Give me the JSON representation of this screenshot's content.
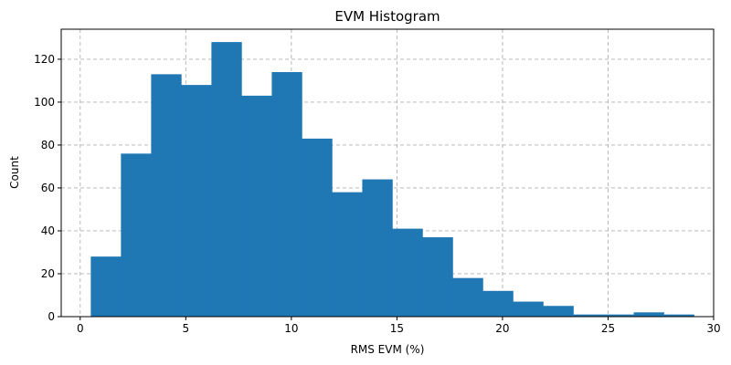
{
  "chart_data": {
    "type": "bar",
    "title": "EVM Histogram",
    "xlabel": "RMS EVM (%)",
    "ylabel": "Count",
    "xlim": [
      -0.9,
      30.0
    ],
    "ylim": [
      0,
      134
    ],
    "xticks": [
      0,
      5,
      10,
      15,
      20,
      25,
      30
    ],
    "yticks": [
      0,
      20,
      40,
      60,
      80,
      100,
      120
    ],
    "grid": true,
    "bar_color": "#1f77b4",
    "bins": {
      "start": 0.5,
      "width": 1.4286,
      "counts": [
        28,
        76,
        113,
        108,
        128,
        103,
        114,
        83,
        58,
        64,
        41,
        37,
        18,
        12,
        7,
        5,
        1,
        1,
        2,
        1
      ]
    }
  }
}
